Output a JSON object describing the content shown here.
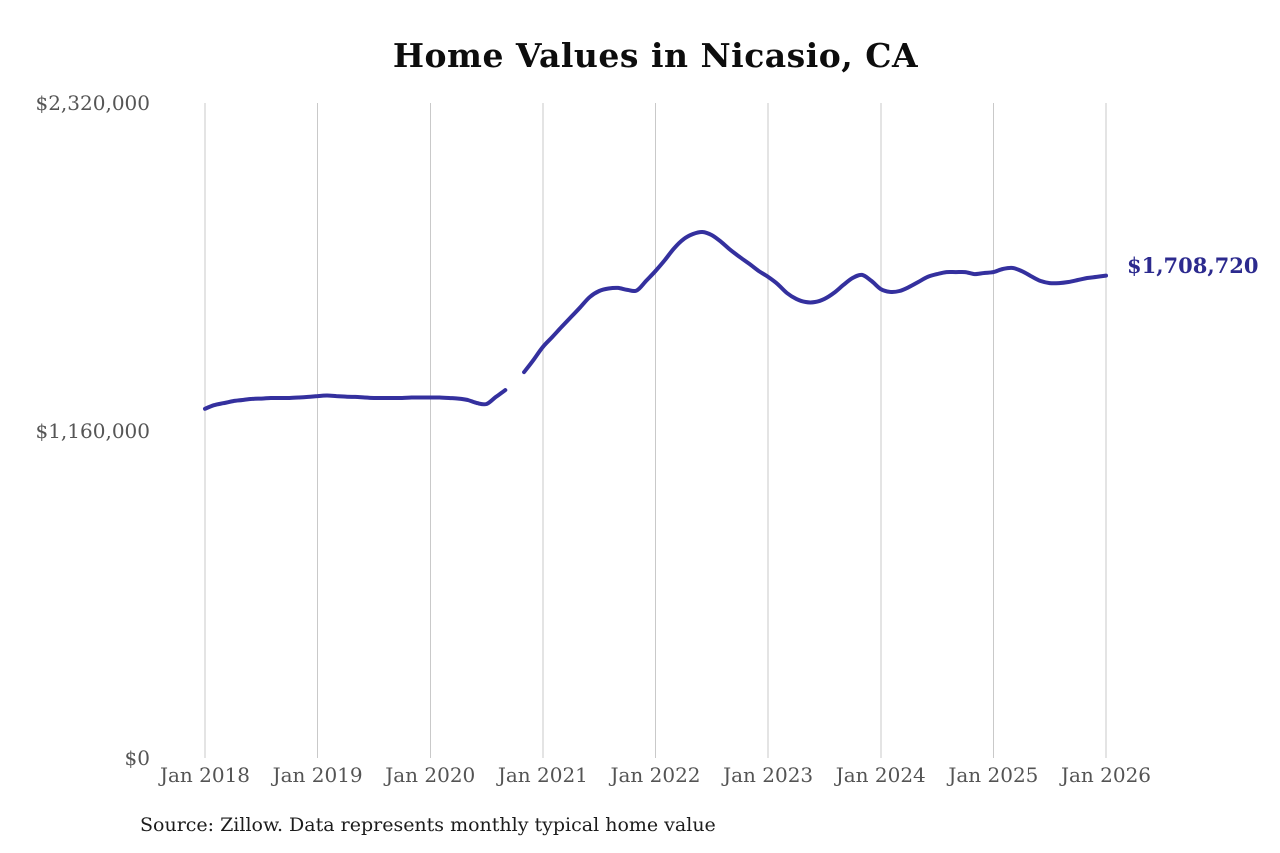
{
  "chart": {
    "title": "Home Values in Nicasio, CA",
    "end_label": "$1,708,720",
    "source_note": "Source: Zillow. Data represents monthly typical home value",
    "colors": {
      "line": "#34309e",
      "end_label": "#2c2a8e",
      "gridline": "#c9c9c9",
      "axis_text": "#555555",
      "title_text": "#0d0d0d",
      "source_text": "#1c1c1c"
    }
  },
  "chart_data": {
    "type": "line",
    "title": "Home Values in Nicasio, CA",
    "series_name": "Monthly typical home value",
    "unit": "USD",
    "grid": "vertical",
    "legend": "none",
    "ylim": [
      0,
      2320000
    ],
    "y_ticks": [
      {
        "value": 0,
        "label": "$0"
      },
      {
        "value": 1160000,
        "label": "$1,160,000"
      },
      {
        "value": 2320000,
        "label": "$2,320,000"
      }
    ],
    "x_tick_labels": [
      "Jan 2018",
      "Jan 2019",
      "Jan 2020",
      "Jan 2021",
      "Jan 2022",
      "Jan 2023",
      "Jan 2024",
      "Jan 2025",
      "Jan 2026"
    ],
    "gap_note": "no data for Oct 2020 (visible break in line)",
    "end_annotation": {
      "x": "Jan 2026",
      "value": 1708720,
      "text": "$1,708,720"
    },
    "x": [
      "Jan 2018",
      "Feb 2018",
      "Mar 2018",
      "Apr 2018",
      "May 2018",
      "Jun 2018",
      "Jul 2018",
      "Aug 2018",
      "Sep 2018",
      "Oct 2018",
      "Nov 2018",
      "Dec 2018",
      "Jan 2019",
      "Feb 2019",
      "Mar 2019",
      "Apr 2019",
      "May 2019",
      "Jun 2019",
      "Jul 2019",
      "Aug 2019",
      "Sep 2019",
      "Oct 2019",
      "Nov 2019",
      "Dec 2019",
      "Jan 2020",
      "Feb 2020",
      "Mar 2020",
      "Apr 2020",
      "May 2020",
      "Jun 2020",
      "Jul 2020",
      "Aug 2020",
      "Sep 2020",
      "Oct 2020",
      "Nov 2020",
      "Dec 2020",
      "Jan 2021",
      "Feb 2021",
      "Mar 2021",
      "Apr 2021",
      "May 2021",
      "Jun 2021",
      "Jul 2021",
      "Aug 2021",
      "Sep 2021",
      "Oct 2021",
      "Nov 2021",
      "Dec 2021",
      "Jan 2022",
      "Feb 2022",
      "Mar 2022",
      "Apr 2022",
      "May 2022",
      "Jun 2022",
      "Jul 2022",
      "Aug 2022",
      "Sep 2022",
      "Oct 2022",
      "Nov 2022",
      "Dec 2022",
      "Jan 2023",
      "Feb 2023",
      "Mar 2023",
      "Apr 2023",
      "May 2023",
      "Jun 2023",
      "Jul 2023",
      "Aug 2023",
      "Sep 2023",
      "Oct 2023",
      "Nov 2023",
      "Dec 2023",
      "Jan 2024",
      "Feb 2024",
      "Mar 2024",
      "Apr 2024",
      "May 2024",
      "Jun 2024",
      "Jul 2024",
      "Aug 2024",
      "Sep 2024",
      "Oct 2024",
      "Nov 2024",
      "Dec 2024",
      "Jan 2025",
      "Feb 2025",
      "Mar 2025",
      "Apr 2025",
      "May 2025",
      "Jun 2025",
      "Jul 2025",
      "Aug 2025",
      "Sep 2025",
      "Oct 2025",
      "Nov 2025",
      "Dec 2025",
      "Jan 2026"
    ],
    "values": [
      1237000,
      1250000,
      1257000,
      1264000,
      1268000,
      1272000,
      1273000,
      1275000,
      1275000,
      1275000,
      1277000,
      1279000,
      1282000,
      1284000,
      1282000,
      1280000,
      1279000,
      1277000,
      1275000,
      1275000,
      1275000,
      1275000,
      1277000,
      1277000,
      1277000,
      1277000,
      1275000,
      1273000,
      1268000,
      1257000,
      1254000,
      1279000,
      1303000,
      null,
      1367000,
      1410000,
      1456000,
      1491000,
      1527000,
      1562000,
      1597000,
      1633000,
      1654000,
      1663000,
      1665000,
      1658000,
      1656000,
      1690000,
      1725000,
      1764000,
      1806000,
      1838000,
      1856000,
      1863000,
      1852000,
      1828000,
      1799000,
      1774000,
      1750000,
      1725000,
      1704000,
      1679000,
      1647000,
      1626000,
      1615000,
      1615000,
      1626000,
      1647000,
      1675000,
      1700000,
      1711000,
      1690000,
      1661000,
      1651000,
      1654000,
      1668000,
      1686000,
      1704000,
      1714000,
      1721000,
      1721000,
      1721000,
      1714000,
      1718000,
      1721000,
      1732000,
      1736000,
      1725000,
      1707000,
      1690000,
      1682000,
      1682000,
      1686000,
      1693000,
      1700000,
      1704000,
      1708720
    ]
  }
}
